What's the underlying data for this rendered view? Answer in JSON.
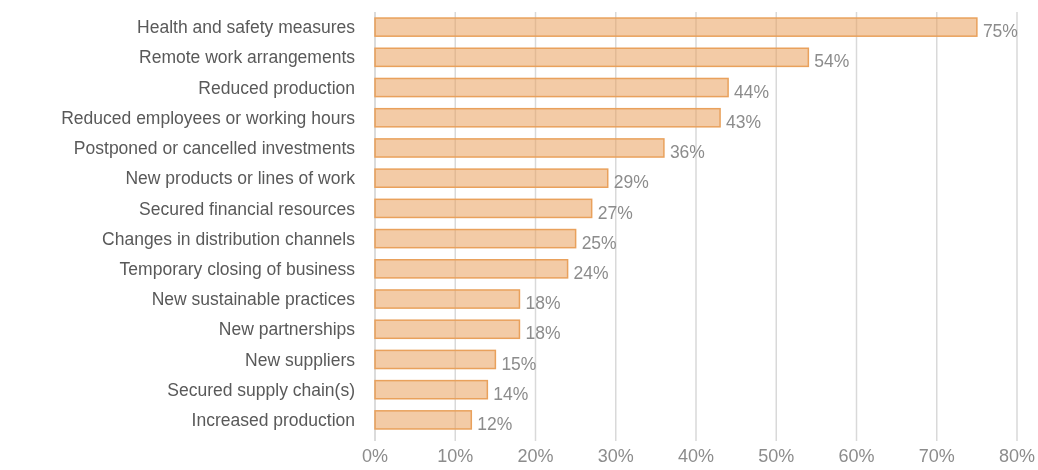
{
  "chart_data": {
    "type": "bar",
    "orientation": "horizontal",
    "categories": [
      "Health and safety measures",
      "Remote work arrangements",
      "Reduced production",
      "Reduced employees or working hours",
      "Postponed or cancelled investments",
      "New products or lines of work",
      "Secured financial resources",
      "Changes in distribution channels",
      "Temporary closing of business",
      "New sustainable practices",
      "New partnerships",
      "New suppliers",
      "Secured supply chain(s)",
      "Increased production"
    ],
    "values": [
      75,
      54,
      44,
      43,
      36,
      29,
      27,
      25,
      24,
      18,
      18,
      15,
      14,
      12
    ],
    "value_labels": [
      "75%",
      "54%",
      "44%",
      "43%",
      "36%",
      "29%",
      "27%",
      "25%",
      "24%",
      "18%",
      "18%",
      "15%",
      "14%",
      "12%"
    ],
    "color": "#e9a15c",
    "xlim": [
      0,
      80
    ],
    "xticks": [
      {
        "value": 0,
        "label": "0%"
      },
      {
        "value": 10,
        "label": "10%"
      },
      {
        "value": 20,
        "label": "20%"
      },
      {
        "value": 30,
        "label": "30%"
      },
      {
        "value": 40,
        "label": "40%"
      },
      {
        "value": 50,
        "label": "50%"
      },
      {
        "value": 60,
        "label": "60%"
      },
      {
        "value": 70,
        "label": "70%"
      },
      {
        "value": 80,
        "label": "80%"
      }
    ],
    "grid": "x"
  }
}
